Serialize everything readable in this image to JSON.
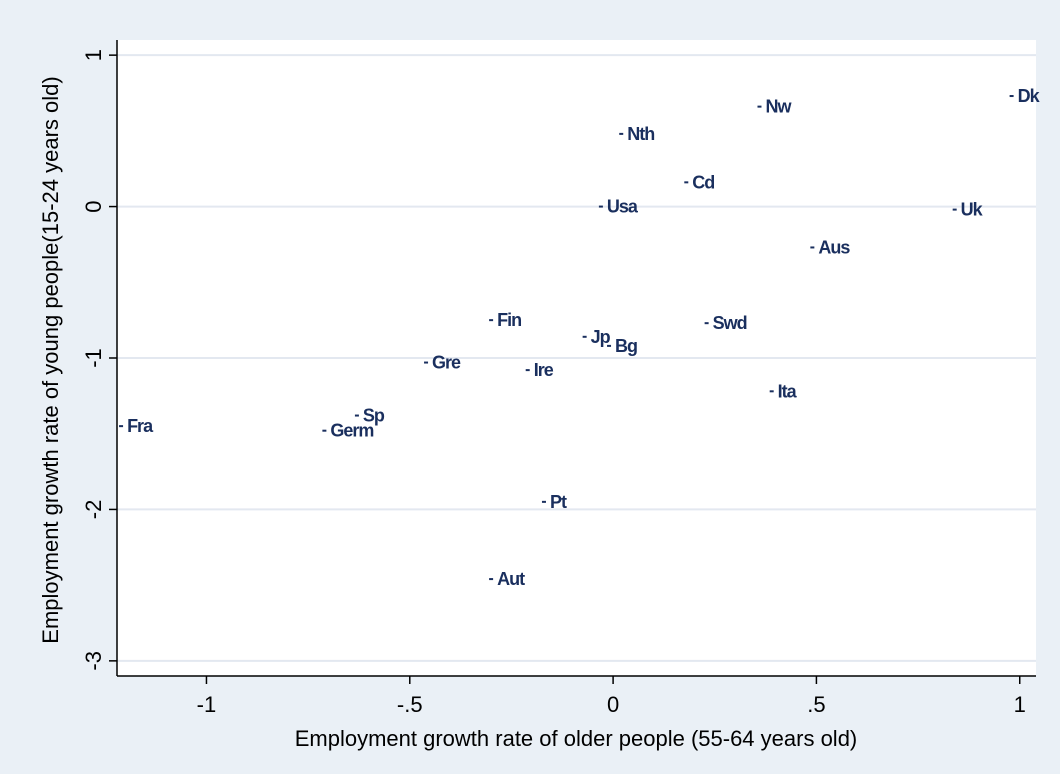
{
  "chart_data": {
    "type": "scatter",
    "title": "",
    "xlabel": "Employment growth rate of older people (55-64 years old)",
    "ylabel": "Employment growth rate of young people(15-24 years old)",
    "xlim": [
      -1.22,
      1.04
    ],
    "ylim": [
      -3.1,
      1.1
    ],
    "grid": "horizontal",
    "marker_color": "#1a2f5e",
    "x_ticks": [
      {
        "value": -1,
        "label": "-1"
      },
      {
        "value": -0.5,
        "label": "-.5"
      },
      {
        "value": 0,
        "label": "0"
      },
      {
        "value": 0.5,
        "label": ".5"
      },
      {
        "value": 1,
        "label": "1"
      }
    ],
    "y_ticks": [
      {
        "value": 1,
        "label": "1"
      },
      {
        "value": 0,
        "label": "0"
      },
      {
        "value": -1,
        "label": "-1"
      },
      {
        "value": -2,
        "label": "-2"
      },
      {
        "value": -3,
        "label": "-3"
      }
    ],
    "points": [
      {
        "label": "Dk",
        "x": 0.98,
        "y": 0.73
      },
      {
        "label": "Nw",
        "x": 0.36,
        "y": 0.66
      },
      {
        "label": "Nth",
        "x": 0.02,
        "y": 0.48
      },
      {
        "label": "Cd",
        "x": 0.18,
        "y": 0.16
      },
      {
        "label": "Usa",
        "x": -0.03,
        "y": 0.0
      },
      {
        "label": "Uk",
        "x": 0.84,
        "y": -0.02
      },
      {
        "label": "Aus",
        "x": 0.49,
        "y": -0.27
      },
      {
        "label": "Fin",
        "x": -0.3,
        "y": -0.75
      },
      {
        "label": "Swd",
        "x": 0.23,
        "y": -0.77
      },
      {
        "label": "Jp",
        "x": -0.07,
        "y": -0.86
      },
      {
        "label": "Bg",
        "x": -0.01,
        "y": -0.92
      },
      {
        "label": "Gre",
        "x": -0.46,
        "y": -1.03
      },
      {
        "label": "Ire",
        "x": -0.21,
        "y": -1.08
      },
      {
        "label": "Ita",
        "x": 0.39,
        "y": -1.22
      },
      {
        "label": "Sp",
        "x": -0.63,
        "y": -1.38
      },
      {
        "label": "Fra",
        "x": -1.21,
        "y": -1.45
      },
      {
        "label": "Germ",
        "x": -0.71,
        "y": -1.48
      },
      {
        "label": "Pt",
        "x": -0.17,
        "y": -1.95
      },
      {
        "label": "Aut",
        "x": -0.3,
        "y": -2.46
      }
    ]
  }
}
